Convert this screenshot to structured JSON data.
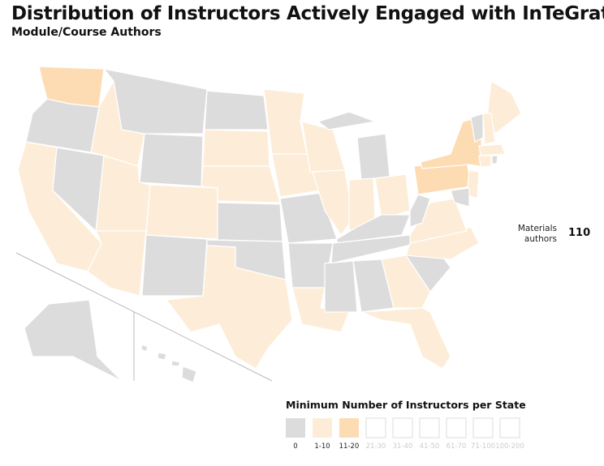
{
  "title": "Distribution of Instructors Actively Engaged with InTeGrate",
  "subtitle": "Module/Course Authors",
  "annotation": {
    "label": "Materials authors",
    "value": 110
  },
  "legend": {
    "title": "Minimum Number of Instructors per State",
    "bins": [
      {
        "label": "0",
        "color": "#dcdcdc"
      },
      {
        "label": "1-10",
        "color": "#fdedd8"
      },
      {
        "label": "11-20",
        "color": "#fddcb3"
      },
      {
        "label": "21-30",
        "color": "#ffffff"
      },
      {
        "label": "31-40",
        "color": "#ffffff"
      },
      {
        "label": "41-50",
        "color": "#ffffff"
      },
      {
        "label": "61-70",
        "color": "#ffffff"
      },
      {
        "label": "71-100",
        "color": "#ffffff"
      },
      {
        "label": "100-200",
        "color": "#ffffff"
      }
    ]
  }
}
